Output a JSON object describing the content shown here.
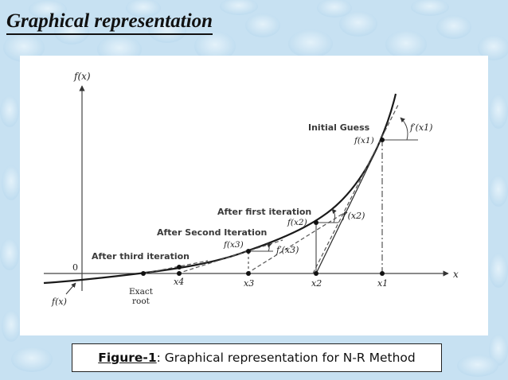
{
  "slide": {
    "title": "Graphical representation"
  },
  "figure": {
    "axis_labels": {
      "y": "f(x)",
      "x": "x",
      "origin": "0",
      "curve": "f(x)"
    },
    "annotations": {
      "initial_guess": "Initial Guess",
      "after_first": "After first iteration",
      "after_second": "After Second Iteration",
      "after_third": "After third iteration",
      "exact_root_line1": "Exact",
      "exact_root_line2": "root"
    },
    "function_labels": {
      "fx1": "f(x1)",
      "fx2": "f(x2)",
      "fx3": "f(x3)"
    },
    "derivative_labels": {
      "d1": "f′(x1)",
      "d2": "f′(x2)",
      "d3": "f′(x3)"
    },
    "tick_labels": [
      "x4",
      "x3",
      "x2",
      "x1"
    ],
    "colors": {
      "curve": "#1a1a1a",
      "annotation_text": "#3a3a3a"
    }
  },
  "caption": {
    "lead": "Figure-1",
    "rest": ": Graphical representation for N-R Method"
  }
}
